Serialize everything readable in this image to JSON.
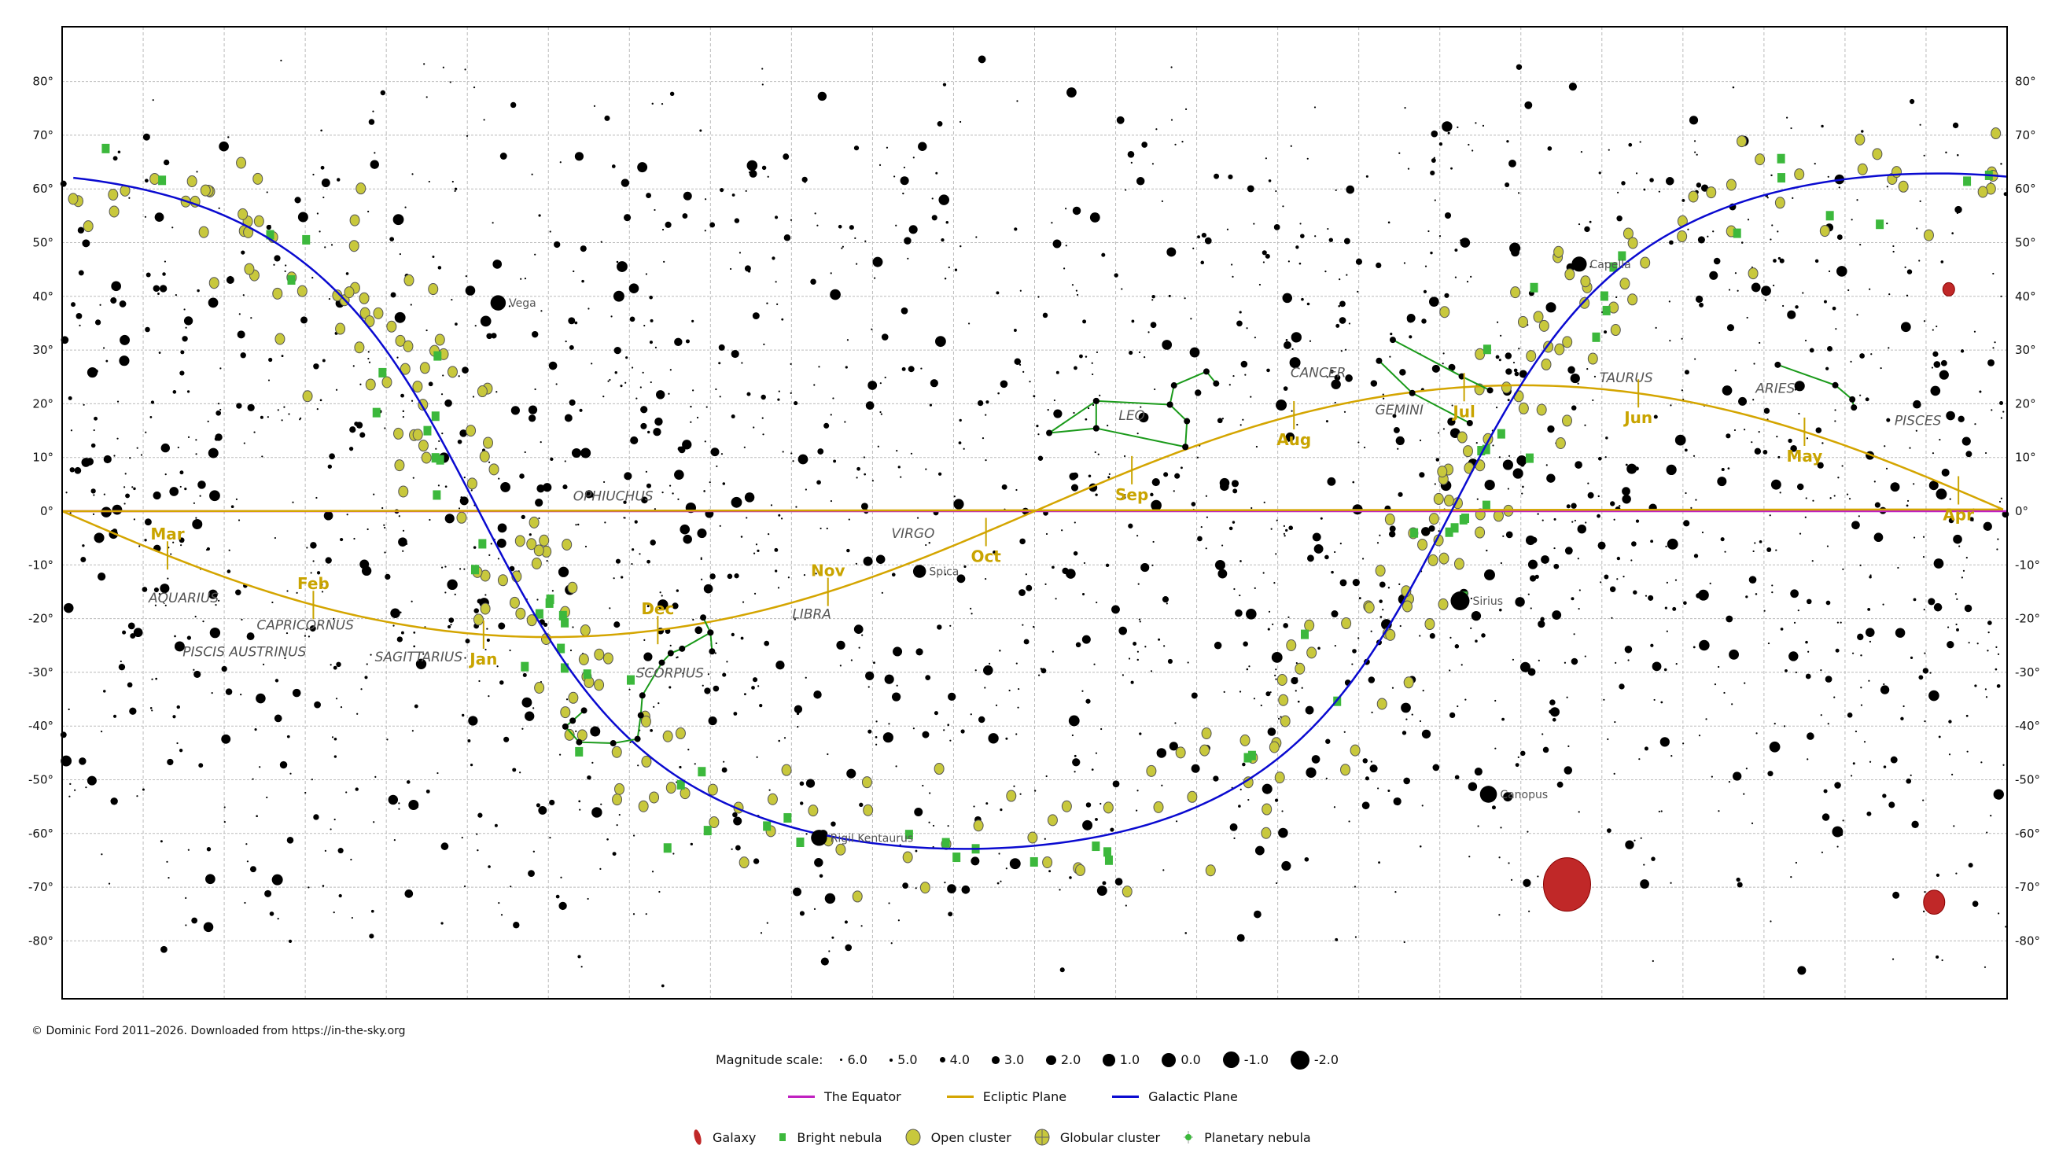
{
  "chart_data": {
    "type": "map",
    "projection": "equirectangular, right ascension decreasing to the right",
    "grid": true,
    "dec_ticks": [
      80,
      70,
      60,
      50,
      40,
      30,
      20,
      10,
      0,
      -10,
      -20,
      -30,
      -40,
      -50,
      -60,
      -70,
      -80
    ],
    "dec_tick_labels": [
      "80°",
      "70°",
      "60°",
      "50°",
      "40°",
      "30°",
      "20°",
      "10°",
      "0°",
      "-10°",
      "-20°",
      "-30°",
      "-40°",
      "-50°",
      "-60°",
      "-70°",
      "-80°"
    ],
    "colors": {
      "equator": "#c020c0",
      "ecliptic": "#d4a500",
      "galactic": "#0a0ad0",
      "constellation": "#1a9a1a",
      "open_cluster": "#c8c83c",
      "bright_nebula": "#3cb83c",
      "galaxy": "#c02828",
      "month_label": "#c9a400"
    },
    "months": [
      {
        "label": "Jan",
        "ra": 18.8
      },
      {
        "label": "Feb",
        "ra": 20.9
      },
      {
        "label": "Mar",
        "ra": 22.7
      },
      {
        "label": "Apr",
        "ra": 0.6
      },
      {
        "label": "May",
        "ra": 2.5
      },
      {
        "label": "Jun",
        "ra": 4.55
      },
      {
        "label": "Jul",
        "ra": 6.7
      },
      {
        "label": "Aug",
        "ra": 8.8
      },
      {
        "label": "Sep",
        "ra": 10.8
      },
      {
        "label": "Oct",
        "ra": 12.6
      },
      {
        "label": "Nov",
        "ra": 14.55
      },
      {
        "label": "Dec",
        "ra": 16.65
      }
    ],
    "named_stars": [
      {
        "name": "Vega",
        "ra": 18.62,
        "dec": 38.78,
        "mag": 0.0
      },
      {
        "name": "Capella",
        "ra": 5.28,
        "dec": 46.0,
        "mag": 0.1
      },
      {
        "name": "Sirius",
        "ra": 6.75,
        "dec": -16.7,
        "mag": -1.5
      },
      {
        "name": "Canopus",
        "ra": 6.4,
        "dec": -52.7,
        "mag": -0.7
      },
      {
        "name": "Spica",
        "ra": 13.42,
        "dec": -11.2,
        "mag": 1.0
      },
      {
        "name": "Rigil Kentaurus",
        "ra": 14.66,
        "dec": -60.8,
        "mag": -0.3
      }
    ],
    "constellation_labels": [
      {
        "name": "AQUARIUS",
        "ra": 22.5,
        "dec": -17
      },
      {
        "name": "CAPRICORNUS",
        "ra": 21.0,
        "dec": -22
      },
      {
        "name": "PISCIS AUSTRINUS",
        "ra": 21.75,
        "dec": -27
      },
      {
        "name": "SAGITTARIUS",
        "ra": 19.6,
        "dec": -28
      },
      {
        "name": "OPHIUCHUS",
        "ra": 17.2,
        "dec": 2
      },
      {
        "name": "SCORPIUS",
        "ra": 16.5,
        "dec": -31
      },
      {
        "name": "LIBRA",
        "ra": 14.75,
        "dec": -20
      },
      {
        "name": "VIRGO",
        "ra": 13.5,
        "dec": -5
      },
      {
        "name": "LEO",
        "ra": 10.8,
        "dec": 17
      },
      {
        "name": "CANCER",
        "ra": 8.5,
        "dec": 25
      },
      {
        "name": "GEMINI",
        "ra": 7.5,
        "dec": 18
      },
      {
        "name": "TAURUS",
        "ra": 4.7,
        "dec": 24
      },
      {
        "name": "ARIES",
        "ra": 2.86,
        "dec": 22
      },
      {
        "name": "PISCES",
        "ra": 1.1,
        "dec": 16
      }
    ],
    "constellation_lines": [
      [
        [
          10.14,
          11.97
        ],
        [
          10.12,
          16.76
        ],
        [
          10.33,
          19.84
        ],
        [
          10.28,
          23.42
        ],
        [
          9.88,
          26.0
        ],
        [
          9.76,
          23.77
        ]
      ],
      [
        [
          10.33,
          19.84
        ],
        [
          11.24,
          20.52
        ],
        [
          11.82,
          14.57
        ],
        [
          11.24,
          15.43
        ],
        [
          10.14,
          11.97
        ]
      ],
      [
        [
          11.24,
          20.52
        ],
        [
          11.24,
          15.43
        ]
      ],
      [
        [
          2.83,
          27.26
        ],
        [
          2.12,
          23.46
        ],
        [
          1.91,
          20.8
        ],
        [
          1.89,
          19.3
        ]
      ],
      [
        [
          15.98,
          -26.1
        ],
        [
          16.0,
          -22.6
        ],
        [
          16.09,
          -19.8
        ]
      ],
      [
        [
          16.0,
          -22.6
        ],
        [
          16.35,
          -25.6
        ],
        [
          16.49,
          -26.43
        ],
        [
          16.6,
          -28.2
        ],
        [
          16.84,
          -34.3
        ],
        [
          16.86,
          -38.0
        ],
        [
          16.9,
          -42.4
        ],
        [
          17.2,
          -43.2
        ],
        [
          17.62,
          -43.0
        ],
        [
          17.79,
          -40.1
        ],
        [
          17.7,
          -39.0
        ],
        [
          17.56,
          -37.1
        ]
      ],
      [
        [
          7.58,
          31.9
        ],
        [
          6.73,
          25.1
        ],
        [
          6.38,
          22.5
        ]
      ],
      [
        [
          7.75,
          28.0
        ],
        [
          7.34,
          22.0
        ],
        [
          6.63,
          16.4
        ]
      ]
    ],
    "galaxies": [
      {
        "ra": 5.43,
        "dec": -69.5,
        "size": 20
      },
      {
        "ra": 0.9,
        "dec": -72.8,
        "size": 9
      },
      {
        "ra": 0.72,
        "dec": 41.3,
        "size": 5
      }
    ]
  },
  "footer": {
    "copyright": "© Dominic Ford 2011–2026. Downloaded from https://in-the-sky.org"
  },
  "legend": {
    "magnitude_title": "Magnitude scale:",
    "magnitudes": [
      "6.0",
      "5.0",
      "4.0",
      "3.0",
      "2.0",
      "1.0",
      "0.0",
      "-1.0",
      "-2.0"
    ],
    "lines": [
      "The Equator",
      "Ecliptic Plane",
      "Galactic Plane"
    ],
    "objects": [
      "Galaxy",
      "Bright nebula",
      "Open cluster",
      "Globular cluster",
      "Planetary nebula"
    ]
  }
}
